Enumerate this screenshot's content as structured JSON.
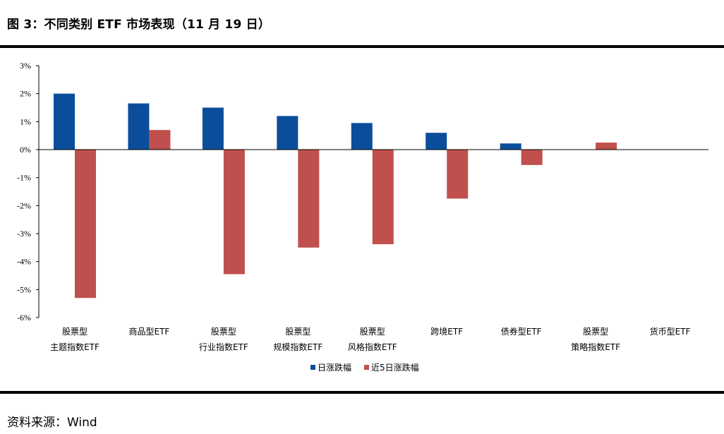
{
  "figure_title": "图 3：不同类别 ETF 市场表现（11 月 19 日）",
  "source": "资料来源：Wind",
  "chart_data": {
    "type": "bar",
    "categories": [
      [
        "股票型",
        "主题指数ETF"
      ],
      [
        "商品型ETF"
      ],
      [
        "股票型",
        "行业指数ETF"
      ],
      [
        "股票型",
        "规模指数ETF"
      ],
      [
        "股票型",
        "风格指数ETF"
      ],
      [
        "跨境ETF"
      ],
      [
        "债券型ETF"
      ],
      [
        "股票型",
        "策略指数ETF"
      ],
      [
        "货币型ETF"
      ]
    ],
    "series": [
      {
        "name": "日涨跌幅",
        "color": "#0a4e9b",
        "values": [
          2.0,
          1.65,
          1.5,
          1.2,
          0.95,
          0.6,
          0.22,
          0.0,
          0.0
        ]
      },
      {
        "name": "近5日涨跌幅",
        "color": "#c0504d",
        "values": [
          -5.3,
          0.7,
          -4.45,
          -3.5,
          -3.38,
          -1.75,
          -0.55,
          0.25,
          0.0
        ]
      }
    ],
    "ylim": [
      -6,
      3
    ],
    "yticks": [
      3,
      2,
      1,
      0,
      -1,
      -2,
      -3,
      -4,
      -5,
      -6
    ],
    "ytick_format": "percent",
    "legend_position": "bottom-center",
    "grid": false
  }
}
